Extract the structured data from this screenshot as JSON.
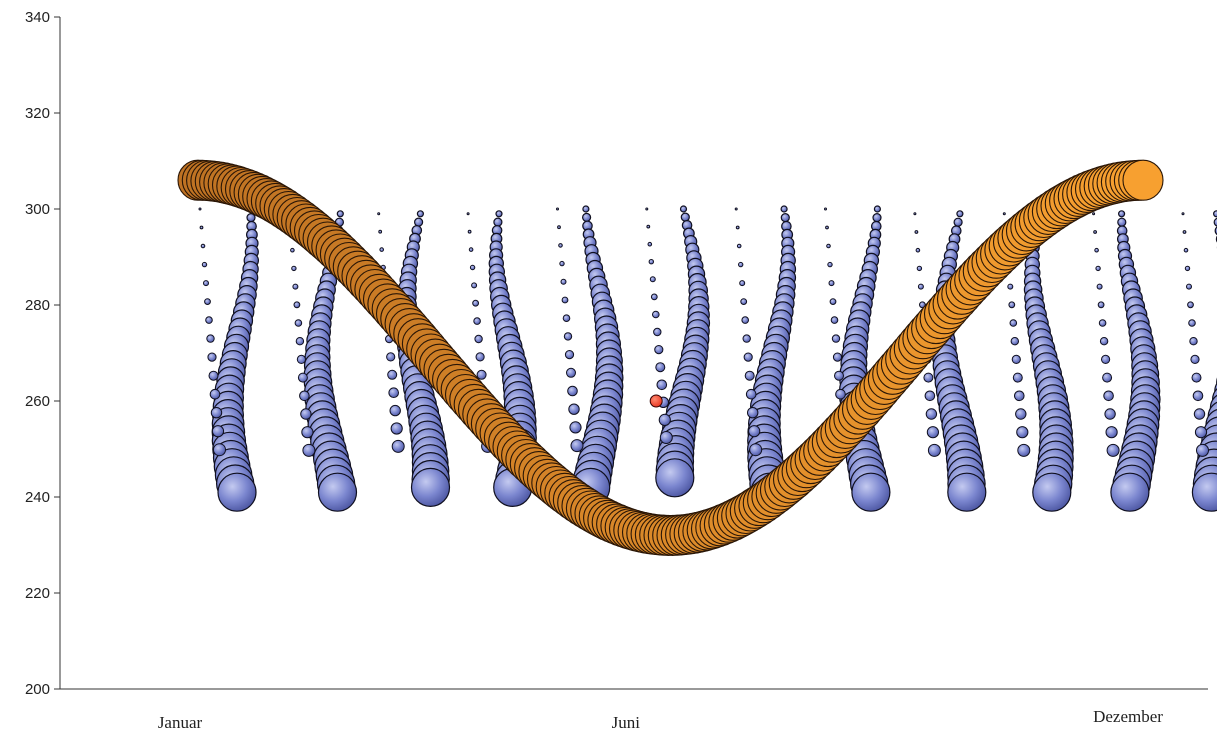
{
  "chart_data": {
    "type": "scatter",
    "subtype": "bubble",
    "title": "",
    "xlabel": "",
    "ylabel": "",
    "ylim": [
      200,
      340
    ],
    "y_ticks": [
      200,
      220,
      240,
      260,
      280,
      300,
      320,
      340
    ],
    "x_tick_labels": [
      "Januar",
      "Juni",
      "Dezember"
    ],
    "grid": false,
    "legend": "none",
    "colors": {
      "blue_bubble": "#7b86cf",
      "blue_stroke": "#101020",
      "orange_start": "#7a3a12",
      "orange_end": "#f7a030",
      "red_point": "#e8321e",
      "axis": "#333333"
    },
    "series": [
      {
        "kind": "monthly-bubble-columns",
        "columns": [
          {
            "month": 1,
            "ymin": 241,
            "ymax": 300
          },
          {
            "month": 2,
            "ymin": 241,
            "ymax": 299
          },
          {
            "month": 3,
            "ymin": 242,
            "ymax": 299
          },
          {
            "month": 4,
            "ymin": 242,
            "ymax": 299
          },
          {
            "month": 5,
            "ymin": 242,
            "ymax": 300
          },
          {
            "month": 6,
            "ymin": 244,
            "ymax": 300
          },
          {
            "month": 7,
            "ymin": 241,
            "ymax": 300
          },
          {
            "month": 8,
            "ymin": 241,
            "ymax": 300
          },
          {
            "month": 9,
            "ymin": 241,
            "ymax": 299
          },
          {
            "month": 10,
            "ymin": 241,
            "ymax": 299
          },
          {
            "month": 11,
            "ymin": 241,
            "ymax": 299
          },
          {
            "month": 12,
            "ymin": 241,
            "ymax": 299
          }
        ]
      },
      {
        "kind": "annual-sine-band",
        "points": 220,
        "y_at_start": 306,
        "y_at_middle": 232,
        "y_at_end": 306
      },
      {
        "kind": "single-point",
        "month": 6.15,
        "y": 260
      }
    ]
  }
}
